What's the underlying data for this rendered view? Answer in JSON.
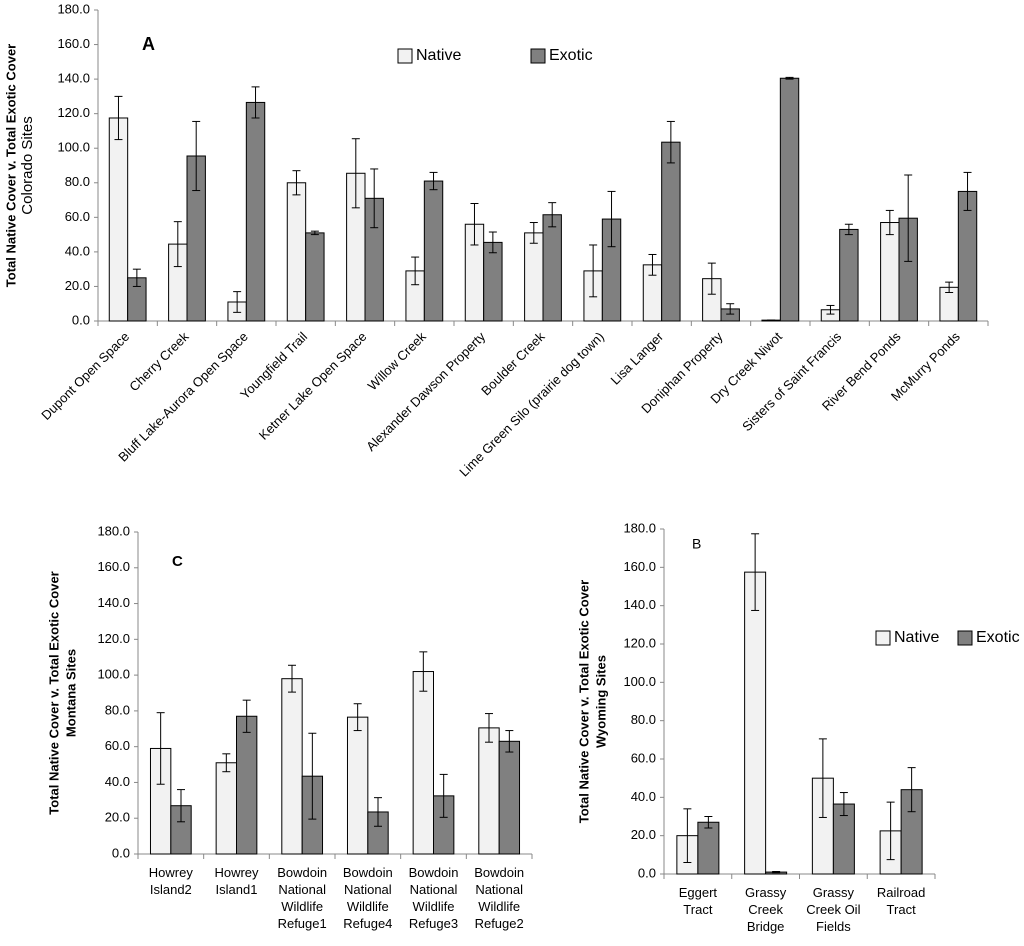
{
  "chart_data": [
    {
      "type": "bar",
      "panel_label": "A",
      "y_label": "Total Native Cover v. Total Exotic Cover",
      "y_sublabel": "Colorado Sites",
      "legend": "top",
      "categories": [
        "Dupont Open Space",
        "Cherry Creek",
        "Bluff Lake-Aurora Open Space",
        "Youngfield Trail",
        "Ketner Lake Open Space",
        "Willow Creek",
        "Alexander Dawson Property",
        "Boulder Creek",
        "Lime Green Silo (prairie dog town)",
        "Lisa Langer",
        "Doniphan Property",
        "Dry Creek Niwot",
        "Sisters of Saint Francis",
        "River Bend Ponds",
        "McMurry Ponds"
      ],
      "series": [
        {
          "name": "Native",
          "color": "#f2f2f2",
          "values": [
            117.5,
            44.5,
            11,
            80,
            85.5,
            29,
            56,
            51,
            29,
            32.5,
            24.5,
            0.5,
            6.5,
            57,
            19.5
          ],
          "errors": [
            12.5,
            13,
            6,
            7,
            20,
            8,
            12,
            6,
            15,
            6,
            9,
            0,
            2.5,
            7,
            3
          ]
        },
        {
          "name": "Exotic",
          "color": "#808080",
          "values": [
            25,
            95.5,
            126.5,
            51,
            71,
            81,
            45.5,
            61.5,
            59,
            103.5,
            7,
            140.5,
            53,
            59.5,
            75
          ],
          "errors": [
            5,
            20,
            9,
            1,
            17,
            5,
            6,
            7,
            16,
            12,
            3,
            0.5,
            3,
            25,
            11
          ]
        }
      ],
      "ylim": [
        0,
        180
      ],
      "yticks": [
        {
          "value": 0,
          "label": "0.0"
        },
        {
          "value": 20,
          "label": "20.0"
        },
        {
          "value": 40,
          "label": "40.0"
        },
        {
          "value": 60,
          "label": "60.0"
        },
        {
          "value": 80,
          "label": "80.0"
        },
        {
          "value": 100,
          "label": "100.0"
        },
        {
          "value": 120,
          "label": "120.0"
        },
        {
          "value": 140,
          "label": "140.0"
        },
        {
          "value": 160,
          "label": "160.0"
        },
        {
          "value": 180,
          "label": "180.0"
        }
      ]
    },
    {
      "type": "bar",
      "panel_label": "C",
      "y_label": "Total Native Cover v. Total Exotic Cover",
      "y_sublabel": "Montana Sites",
      "legend": false,
      "categories": [
        "Howrey Island2",
        "Howrey Island1",
        "Bowdoin National Wildlife Refuge1",
        "Bowdoin National Wildlife Refuge4",
        "Bowdoin National Wildlife Refuge3",
        "Bowdoin National Wildlife Refuge2"
      ],
      "series": [
        {
          "color": "#f2f2f2",
          "values": [
            59,
            51,
            98,
            76.5,
            102,
            70.5
          ],
          "errors": [
            20,
            5,
            7.5,
            7.5,
            11,
            8
          ]
        },
        {
          "color": "#808080",
          "values": [
            27,
            77,
            43.5,
            23.5,
            32.5,
            63
          ],
          "errors": [
            9,
            9,
            24,
            8,
            12,
            6
          ]
        }
      ],
      "ylim": [
        0,
        180
      ],
      "yticks": [
        {
          "value": 0,
          "label": "0.0"
        },
        {
          "value": 20,
          "label": "20.0"
        },
        {
          "value": 40,
          "label": "40.0"
        },
        {
          "value": 60,
          "label": "60.0"
        },
        {
          "value": 80,
          "label": "80.0"
        },
        {
          "value": 100,
          "label": "100.0"
        },
        {
          "value": 120,
          "label": "120.0"
        },
        {
          "value": 140,
          "label": "140.0"
        },
        {
          "value": 160,
          "label": "160.0"
        },
        {
          "value": 180,
          "label": "180.0"
        }
      ]
    },
    {
      "type": "bar",
      "panel_label": "B",
      "y_label": "Total Native Cover v. Total Exotic Cover",
      "y_sublabel": "Wyoming Sites",
      "legend": "right",
      "categories": [
        "Eggert Tract",
        "Grassy Creek Bridge",
        "Grassy Creek Oil Fields",
        "Railroad Tract"
      ],
      "series": [
        {
          "name": "Native",
          "color": "#f2f2f2",
          "values": [
            20,
            157.5,
            50,
            22.5
          ],
          "errors": [
            14,
            20,
            20.5,
            15
          ]
        },
        {
          "name": "Exotic",
          "color": "#808080",
          "values": [
            27,
            1,
            36.5,
            44
          ],
          "errors": [
            3,
            0.3,
            6,
            11.5
          ]
        }
      ],
      "ylim": [
        0,
        180
      ],
      "yticks": [
        {
          "value": 0,
          "label": "0.0"
        },
        {
          "value": 20,
          "label": "20.0"
        },
        {
          "value": 40,
          "label": "40.0"
        },
        {
          "value": 60,
          "label": "60.0"
        },
        {
          "value": 80,
          "label": "80.0"
        },
        {
          "value": 100,
          "label": "100.0"
        },
        {
          "value": 120,
          "label": "120.0"
        },
        {
          "value": 140,
          "label": "140.0"
        },
        {
          "value": 160,
          "label": "160.0"
        },
        {
          "value": 180,
          "label": "180.0"
        }
      ]
    }
  ]
}
